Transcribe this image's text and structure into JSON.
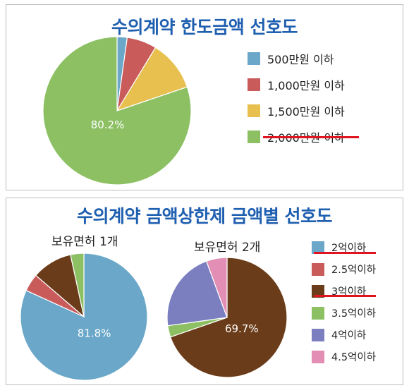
{
  "chart_data": [
    {
      "type": "pie",
      "title": "수의계약 한도금액 선호도",
      "categories": [
        "500만원 이하",
        "1,000만원 이하",
        "1,500만원 이하",
        "2,000만원 이하"
      ],
      "values": [
        2.2,
        6.5,
        11.1,
        80.2
      ],
      "colors": [
        "#6aa7c8",
        "#c95b5b",
        "#e7c04f",
        "#8cc063"
      ],
      "data_labels": [
        {
          "index": 3,
          "text": "80.2%"
        }
      ],
      "legend_position": "right",
      "highlighted": [
        "2,000만원 이하"
      ]
    },
    {
      "type": "pie",
      "title": "수의계약 금액상한제 금액별 선호도",
      "legend_position": "right",
      "categories": [
        "2억이하",
        "2.5억이하",
        "3억이하",
        "3.5억이하",
        "4억이하",
        "4.5억이하"
      ],
      "colors": [
        "#6aa7c8",
        "#c95b5b",
        "#6b3c19",
        "#8cc063",
        "#7b7fc0",
        "#e28eb5"
      ],
      "highlighted": [
        "2억이하",
        "3억이하"
      ],
      "series": [
        {
          "name": "보유면허 1개",
          "values": [
            81.8,
            4.5,
            10.3,
            3.4,
            0,
            0
          ],
          "data_labels": [
            {
              "index": 0,
              "text": "81.8%"
            }
          ]
        },
        {
          "name": "보유면허 2개",
          "values": [
            0,
            0,
            69.7,
            3.1,
            21.6,
            5.6
          ],
          "data_labels": [
            {
              "index": 2,
              "text": "69.7%"
            }
          ]
        }
      ]
    }
  ]
}
